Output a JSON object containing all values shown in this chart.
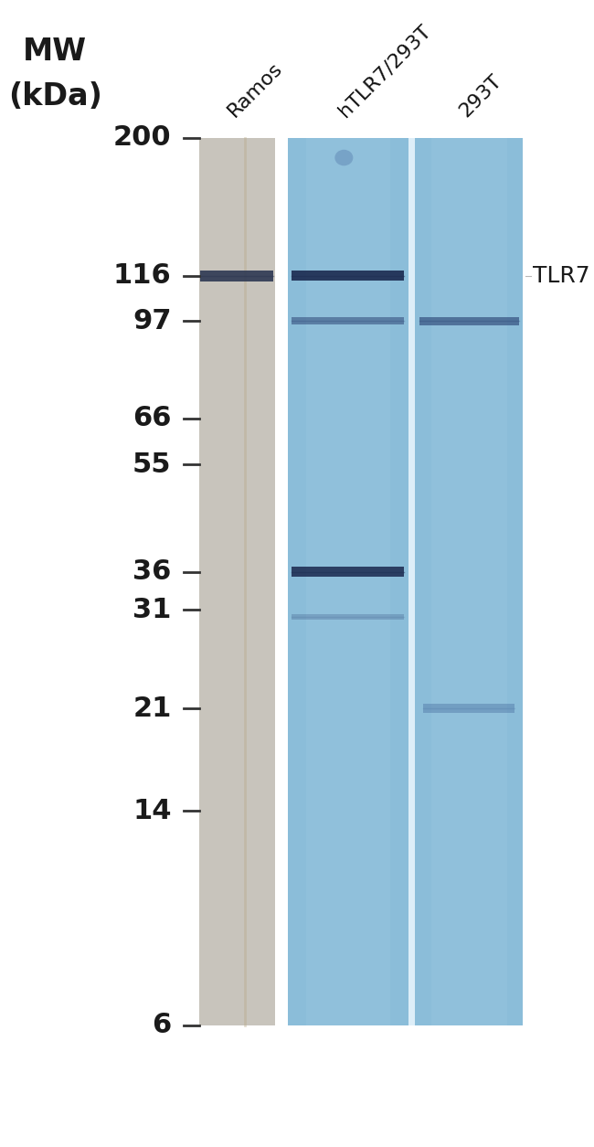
{
  "background_color": "#ffffff",
  "fig_width": 6.5,
  "fig_height": 12.55,
  "mw_label": "MW\n(kDa)",
  "mw_label_fontsize": 24,
  "ladder_marks": [
    "200",
    "116",
    "97",
    "66",
    "55",
    "36",
    "31",
    "21",
    "14",
    "6"
  ],
  "ladder_fontsize": 22,
  "lane_labels": [
    "Ramos",
    "hTLR7/293T",
    "293T"
  ],
  "lane_label_fontsize": 16,
  "tlr7_label": "TLR7",
  "tlr7_label_fontsize": 18,
  "gel_bg_gray": "#c8c4bc",
  "gel_bg_blue": "#8bbdd9",
  "gel_bg_blue2": "#8bbdd9",
  "separator_color": "#cce4f0",
  "band_color_dark": "#1e2d52",
  "band_color_mid": "#2e4878",
  "band_color_light": "#4a6fa0",
  "band_color_gray": "#2a3550"
}
